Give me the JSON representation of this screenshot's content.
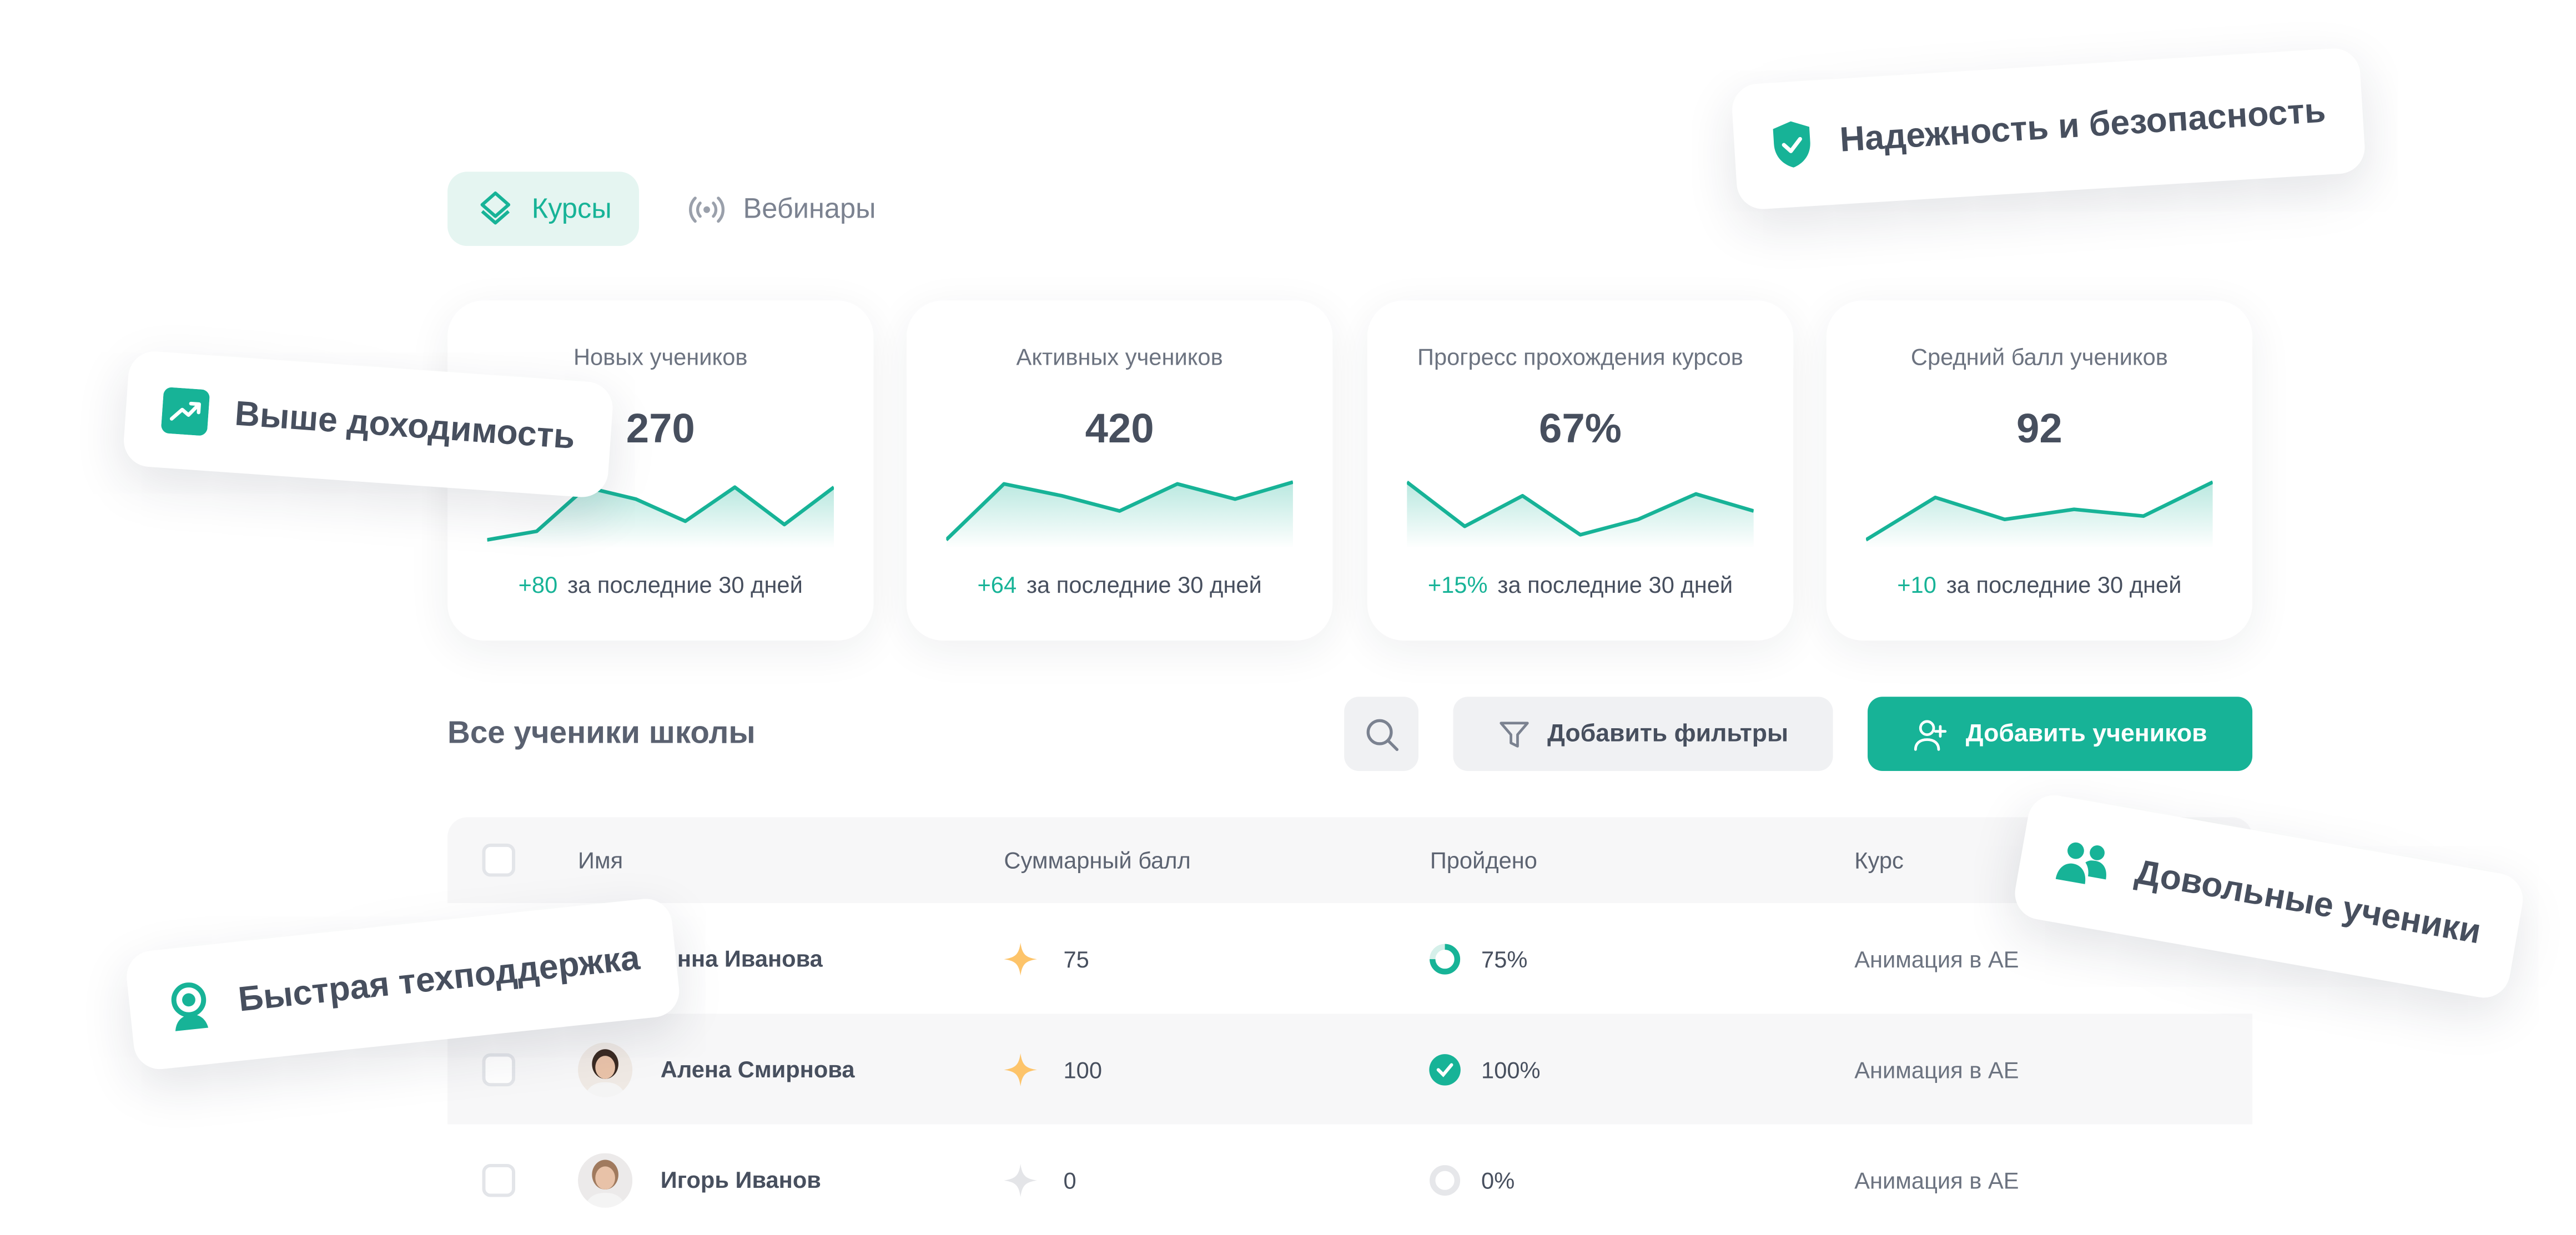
{
  "tabs": [
    {
      "label": "Курсы",
      "icon": "layers-icon",
      "active": true
    },
    {
      "label": "Вебинары",
      "icon": "broadcast-icon",
      "active": false
    }
  ],
  "colors": {
    "accent": "#17b397",
    "accent_light": "#e5f5f1",
    "text": "#474f5e",
    "star": "#fdc46a"
  },
  "stats": [
    {
      "title": "Новых учеников",
      "value": "270",
      "delta": "+80",
      "period": "за последние 30 дней"
    },
    {
      "title": "Активных учеников",
      "value": "420",
      "delta": "+64",
      "period": "за последние 30 дней"
    },
    {
      "title": "Прогресс прохождения курсов",
      "value": "67%",
      "delta": "+15%",
      "period": "за последние 30 дней"
    },
    {
      "title": "Средний балл учеников",
      "value": "92",
      "delta": "+10",
      "period": "за последние 30 дней"
    }
  ],
  "chart_data": [
    {
      "type": "area",
      "values": [
        1,
        6,
        32,
        25,
        12,
        32,
        10,
        32
      ]
    },
    {
      "type": "area",
      "values": [
        1,
        34,
        27,
        18,
        34,
        25,
        35
      ]
    },
    {
      "type": "area",
      "values": [
        35,
        9,
        27,
        4,
        13,
        28,
        18
      ]
    },
    {
      "type": "area",
      "values": [
        1,
        26,
        13,
        19,
        15,
        35
      ]
    }
  ],
  "students": {
    "title": "Все ученики школы",
    "filter_label": "Добавить фильтры",
    "add_label": "Добавить учеников",
    "columns": [
      "Имя",
      "Суммарный балл",
      "Пройдено",
      "Курс"
    ],
    "rows": [
      {
        "name": "Анна Иванова",
        "score": "75",
        "progress": "75%",
        "progress_value": 75,
        "course": "Анимация в AE"
      },
      {
        "name": "Алена Смирнова",
        "score": "100",
        "progress": "100%",
        "progress_value": 100,
        "course": "Анимация в AE"
      },
      {
        "name": "Игорь Иванов",
        "score": "0",
        "progress": "0%",
        "progress_value": 0,
        "course": "Анимация в AE"
      }
    ]
  },
  "badges": {
    "security": "Надежность и безопасность",
    "completion": "Выше доходимость",
    "support": "Быстрая техподдержка",
    "happy": "Довольные ученики"
  }
}
